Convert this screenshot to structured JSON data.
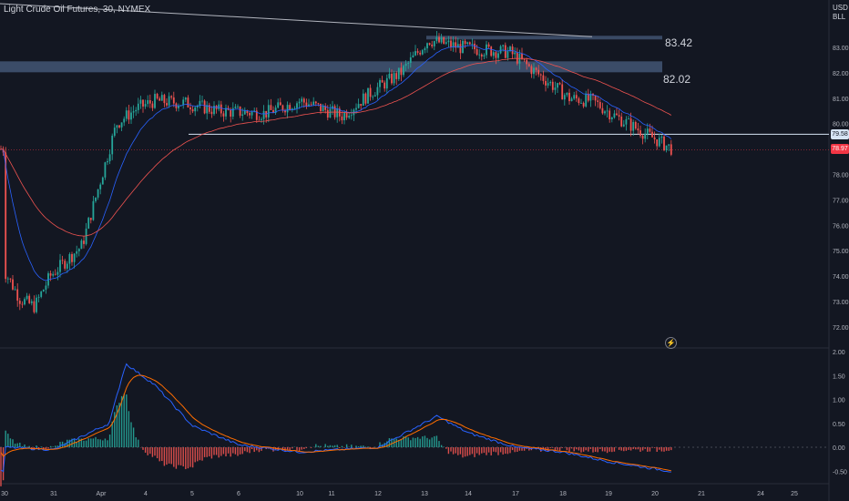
{
  "header": {
    "instrument": "Light Crude Oil Futures, 30, NYMEX"
  },
  "currency": {
    "line1": "USD",
    "line2": "BLL"
  },
  "price_axis": {
    "ticks": [
      "83.00",
      "82.00",
      "81.00",
      "80.00",
      "79.00",
      "78.00",
      "77.00",
      "76.00",
      "75.00",
      "74.00",
      "73.00",
      "72.00"
    ]
  },
  "macd_axis": {
    "ticks": [
      "2.00",
      "1.50",
      "1.00",
      "0.50",
      "0.00",
      "-0.50"
    ]
  },
  "time_axis": {
    "labels": [
      "30",
      "31",
      "Apr",
      "4",
      "5",
      "6",
      "10",
      "11",
      "12",
      "13",
      "14",
      "17",
      "18",
      "19",
      "20",
      "21",
      "24",
      "25"
    ]
  },
  "badges": {
    "level": "79.58",
    "last_price": "78.97"
  },
  "levels": {
    "top": "83.42",
    "zone": "82.02"
  },
  "icons": {
    "alert": "lightning-icon"
  },
  "colors": {
    "background": "#131722",
    "up": "#26a69a",
    "down": "#ef5350",
    "macd": "#2962ff",
    "signal": "#ff6d00",
    "zone": "#4a5f80"
  },
  "chart_data": {
    "type": "candlestick",
    "symbol": "Light Crude Oil Futures",
    "interval": "30",
    "exchange": "NYMEX",
    "ylim": [
      71.7,
      83.9
    ],
    "x_axis_dates": [
      "Mar 30",
      "Mar 31",
      "Apr 3",
      "Apr 4",
      "Apr 5",
      "Apr 6",
      "Apr 10",
      "Apr 11",
      "Apr 12",
      "Apr 13",
      "Apr 14",
      "Apr 17",
      "Apr 18",
      "Apr 19",
      "Apr 20",
      "Apr 21",
      "Apr 24",
      "Apr 25"
    ],
    "close_path": [
      {
        "date": "Mar 30",
        "close": 74.2
      },
      {
        "date": "Mar 30",
        "close": 73.1
      },
      {
        "date": "Mar 31",
        "close": 72.8
      },
      {
        "date": "Mar 31",
        "close": 74.0
      },
      {
        "date": "Mar 31",
        "close": 75.2
      },
      {
        "date": "Apr 3",
        "close": 80.0
      },
      {
        "date": "Apr 3",
        "close": 80.6
      },
      {
        "date": "Apr 4",
        "close": 80.9
      },
      {
        "date": "Apr 5",
        "close": 80.8
      },
      {
        "date": "Apr 5",
        "close": 80.5
      },
      {
        "date": "Apr 6",
        "close": 80.4
      },
      {
        "date": "Apr 10",
        "close": 80.9
      },
      {
        "date": "Apr 11",
        "close": 80.3
      },
      {
        "date": "Apr 12",
        "close": 81.3
      },
      {
        "date": "Apr 13",
        "close": 82.0
      },
      {
        "date": "Apr 13",
        "close": 83.3
      },
      {
        "date": "Apr 14",
        "close": 83.0
      },
      {
        "date": "Apr 17",
        "close": 82.8
      },
      {
        "date": "Apr 18",
        "close": 81.0
      },
      {
        "date": "Apr 19",
        "close": 80.9
      },
      {
        "date": "Apr 19",
        "close": 80.3
      },
      {
        "date": "Apr 20",
        "close": 79.0
      }
    ],
    "horizontal_levels": [
      {
        "label": "83.42",
        "value": 83.42
      },
      {
        "label": "79.58",
        "value": 79.58
      },
      {
        "label": "78.97",
        "value": 78.97
      }
    ],
    "zones": [
      {
        "label": "82.02",
        "from": 82.02,
        "to": 82.45
      }
    ],
    "trendline": {
      "from": {
        "date": "Mar 30",
        "value": 85.0
      },
      "to": {
        "date": "Apr 13",
        "value": 83.42
      }
    },
    "indicators": [
      {
        "name": "EMA fast",
        "color": "#2962ff"
      },
      {
        "name": "EMA slow",
        "color": "#ef5350"
      }
    ],
    "macd": {
      "ylim": [
        -0.75,
        2.2
      ],
      "macd_path": [
        {
          "date": "Mar 30",
          "value": 0.0
        },
        {
          "date": "Mar 31",
          "value": -0.05
        },
        {
          "date": "Apr 3",
          "value": 0.5
        },
        {
          "date": "Apr 3",
          "value": 1.75
        },
        {
          "date": "Apr 4",
          "value": 1.3
        },
        {
          "date": "Apr 5",
          "value": 0.45
        },
        {
          "date": "Apr 6",
          "value": 0.05
        },
        {
          "date": "Apr 10",
          "value": -0.1
        },
        {
          "date": "Apr 12",
          "value": 0.0
        },
        {
          "date": "Apr 13",
          "value": 0.65
        },
        {
          "date": "Apr 14",
          "value": 0.3
        },
        {
          "date": "Apr 17",
          "value": 0.0
        },
        {
          "date": "Apr 18",
          "value": -0.1
        },
        {
          "date": "Apr 19",
          "value": -0.3
        },
        {
          "date": "Apr 20",
          "value": -0.5
        }
      ]
    }
  }
}
